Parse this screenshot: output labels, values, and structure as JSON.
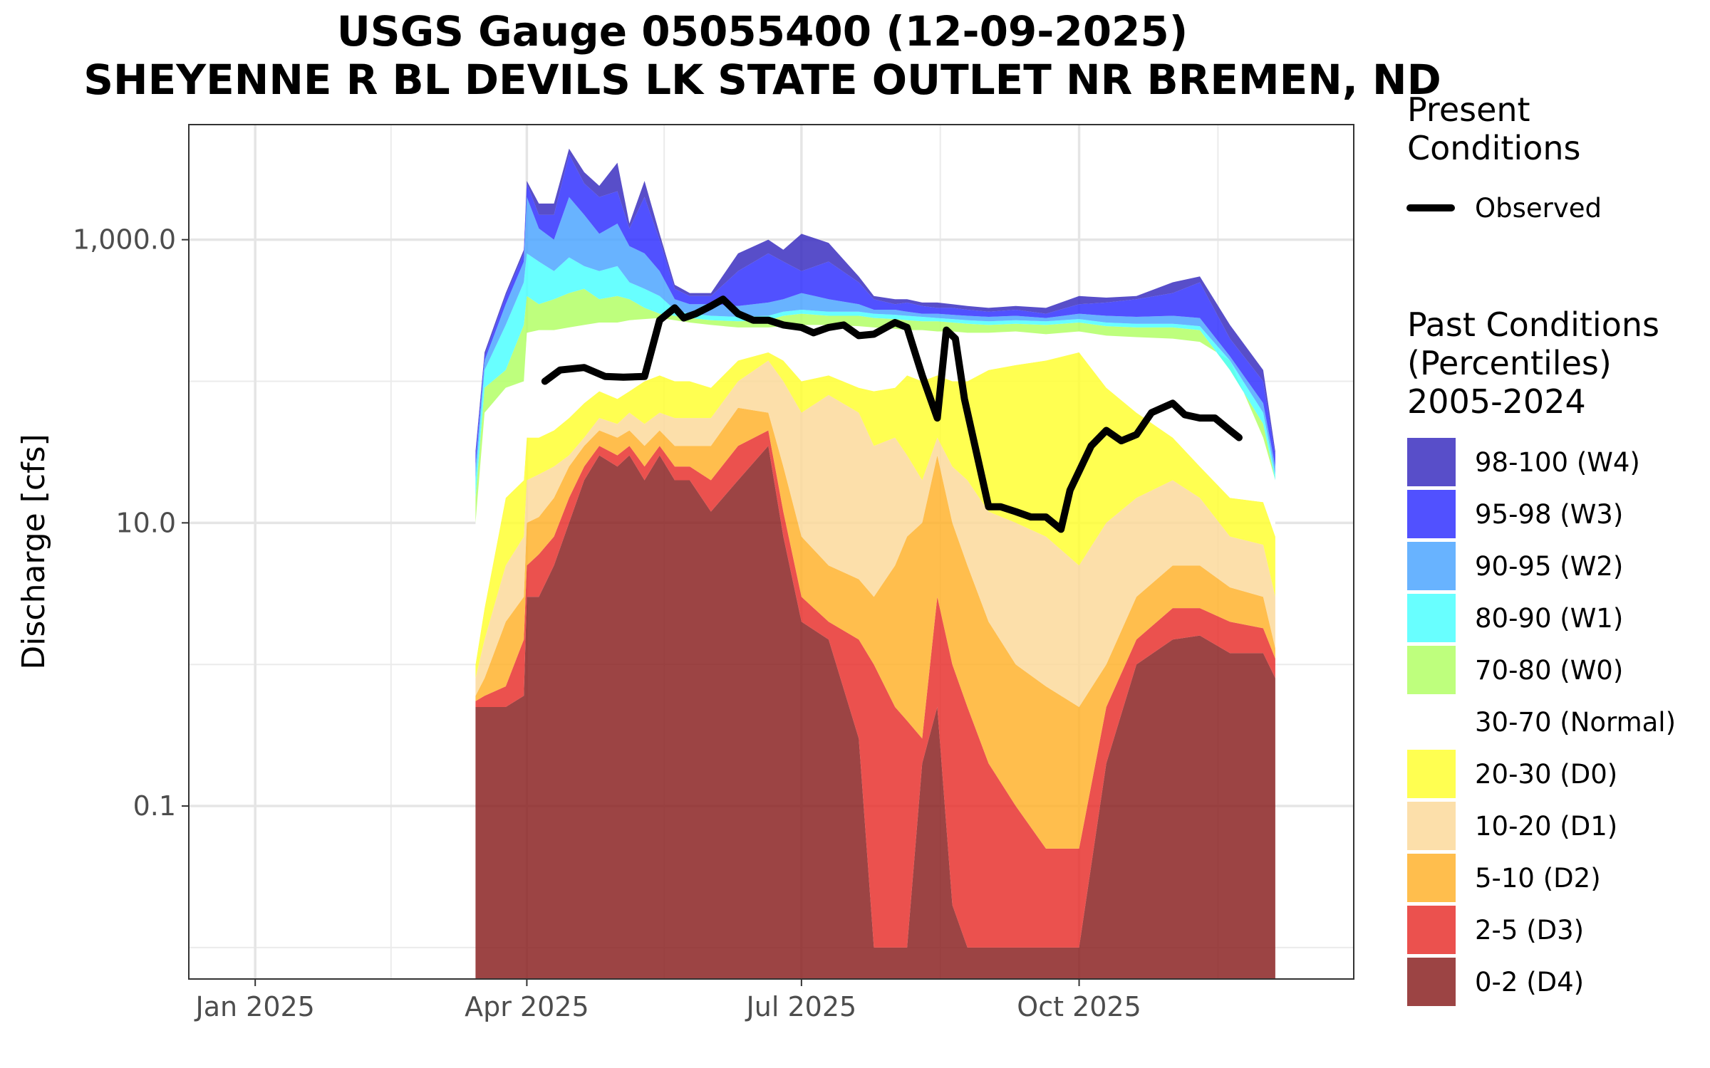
{
  "chart_data": {
    "type": "area",
    "title_line1": "USGS Gauge 05055400 (12-09-2025)",
    "title_line2": "SHEYENNE R BL DEVILS LK STATE OUTLET NR BREMEN, ND",
    "ylabel": "Discharge [cfs]",
    "xlabel": "",
    "y_scale": "log10",
    "ylim": [
      0.006,
      6500
    ],
    "xlim": [
      "2024-12-10",
      "2025-12-31"
    ],
    "grid": true,
    "legend_position": "right",
    "x_ticks": [
      {
        "label": "Jan 2025",
        "date": "2025-01-01"
      },
      {
        "label": "Apr 2025",
        "date": "2025-04-01"
      },
      {
        "label": "Jul 2025",
        "date": "2025-07-01"
      },
      {
        "label": "Oct 2025",
        "date": "2025-10-01"
      }
    ],
    "y_ticks": [
      {
        "label": "0.1",
        "value": 0.1
      },
      {
        "label": "10.0",
        "value": 10
      },
      {
        "label": "1,000.0",
        "value": 1000
      }
    ],
    "legend_present_title": [
      "Present",
      "Conditions"
    ],
    "legend_observed_label": "Observed",
    "legend_past_title": [
      "Past Conditions",
      "(Percentiles)",
      "2005-2024"
    ],
    "band_dates": [
      "2025-03-15",
      "2025-03-18",
      "2025-03-25",
      "2025-03-31",
      "2025-04-01",
      "2025-04-05",
      "2025-04-10",
      "2025-04-15",
      "2025-04-20",
      "2025-04-25",
      "2025-05-01",
      "2025-05-05",
      "2025-05-10",
      "2025-05-15",
      "2025-05-20",
      "2025-05-25",
      "2025-06-01",
      "2025-06-10",
      "2025-06-20",
      "2025-06-25",
      "2025-07-01",
      "2025-07-10",
      "2025-07-20",
      "2025-07-25",
      "2025-08-01",
      "2025-08-05",
      "2025-08-10",
      "2025-08-15",
      "2025-08-20",
      "2025-08-25",
      "2025-09-01",
      "2025-09-10",
      "2025-09-20",
      "2025-10-01",
      "2025-10-10",
      "2025-10-20",
      "2025-11-01",
      "2025-11-10",
      "2025-11-20",
      "2025-12-01",
      "2025-12-05"
    ],
    "bands": [
      {
        "name": "0-2 (D4)",
        "color": "#8b2323",
        "values": [
          0.5,
          0.5,
          0.5,
          0.6,
          3,
          3,
          5,
          10,
          20,
          30,
          25,
          30,
          20,
          30,
          20,
          20,
          12,
          20,
          35,
          8,
          2,
          1.5,
          0.3,
          0.01,
          0.01,
          0.01,
          0.2,
          0.5,
          0.02,
          0.01,
          0.01,
          0.01,
          0.01,
          0.01,
          0.2,
          1,
          1.5,
          1.6,
          1.2,
          1.2,
          0.8
        ]
      },
      {
        "name": "2-5 (D3)",
        "color": "#e8332f",
        "values": [
          0.55,
          0.6,
          0.7,
          1.5,
          5,
          6,
          8,
          15,
          25,
          35,
          30,
          35,
          25,
          35,
          25,
          25,
          20,
          35,
          45,
          12,
          3,
          2,
          1.5,
          1,
          0.5,
          0.4,
          0.3,
          3,
          1,
          0.5,
          0.2,
          0.1,
          0.05,
          0.05,
          0.5,
          1.5,
          2.5,
          2.5,
          2,
          1.8,
          1.1
        ]
      },
      {
        "name": "5-10 (D2)",
        "color": "#ffb32e",
        "values": [
          0.6,
          0.8,
          2,
          3,
          10,
          11,
          15,
          25,
          35,
          45,
          40,
          45,
          35,
          45,
          35,
          35,
          35,
          65,
          60,
          25,
          8,
          5,
          4,
          3,
          5,
          8,
          10,
          30,
          10,
          5,
          2,
          1,
          0.7,
          0.5,
          1,
          3,
          5,
          5,
          3.5,
          3,
          1.3
        ]
      },
      {
        "name": "10-20 (D1)",
        "color": "#fcd99b",
        "values": [
          0.8,
          1.5,
          5,
          8,
          20,
          22,
          25,
          30,
          40,
          55,
          50,
          60,
          50,
          60,
          55,
          55,
          55,
          100,
          140,
          100,
          60,
          80,
          60,
          35,
          40,
          30,
          20,
          40,
          25,
          20,
          12,
          10,
          8,
          5,
          10,
          15,
          20,
          15,
          8,
          7,
          3
        ]
      },
      {
        "name": "20-30 (D0)",
        "color": "#ffff33",
        "values": [
          1,
          2.5,
          15,
          20,
          40,
          40,
          45,
          55,
          70,
          85,
          75,
          85,
          100,
          110,
          100,
          100,
          90,
          140,
          160,
          140,
          100,
          110,
          90,
          85,
          90,
          110,
          100,
          110,
          100,
          100,
          120,
          130,
          140,
          160,
          90,
          60,
          40,
          25,
          15,
          14,
          8
        ]
      },
      {
        "name": "30-70 (Normal)",
        "color": "#ffffff",
        "values": [
          10,
          60,
          90,
          100,
          220,
          230,
          230,
          240,
          250,
          260,
          260,
          270,
          275,
          280,
          270,
          260,
          250,
          240,
          240,
          245,
          250,
          250,
          245,
          240,
          235,
          230,
          230,
          225,
          225,
          220,
          220,
          225,
          215,
          225,
          210,
          205,
          200,
          190,
          140,
          40,
          20
        ]
      },
      {
        "name": "70-80 (W0)",
        "color": "#b3ff66",
        "values": [
          15,
          90,
          120,
          250,
          400,
          350,
          380,
          420,
          450,
          380,
          400,
          380,
          330,
          300,
          290,
          280,
          270,
          265,
          270,
          290,
          300,
          290,
          290,
          280,
          275,
          270,
          265,
          265,
          260,
          255,
          250,
          255,
          250,
          260,
          245,
          240,
          240,
          230,
          120,
          50,
          20
        ]
      },
      {
        "name": "80-90 (W1)",
        "color": "#4dffff",
        "values": [
          20,
          120,
          250,
          500,
          800,
          700,
          600,
          750,
          650,
          600,
          650,
          500,
          450,
          400,
          320,
          300,
          290,
          285,
          290,
          310,
          320,
          310,
          310,
          300,
          295,
          290,
          285,
          280,
          275,
          270,
          265,
          270,
          265,
          275,
          260,
          255,
          255,
          245,
          140,
          60,
          22
        ]
      },
      {
        "name": "90-95 (W2)",
        "color": "#4da6ff",
        "values": [
          25,
          140,
          350,
          700,
          2000,
          1200,
          1000,
          2000,
          1500,
          1100,
          1300,
          900,
          800,
          600,
          380,
          350,
          350,
          340,
          360,
          380,
          420,
          380,
          350,
          320,
          320,
          310,
          300,
          300,
          295,
          290,
          285,
          290,
          280,
          300,
          290,
          285,
          290,
          280,
          150,
          70,
          25
        ]
      },
      {
        "name": "95-98 (W3)",
        "color": "#3333ff",
        "values": [
          30,
          150,
          400,
          800,
          2500,
          1500,
          1500,
          4000,
          2500,
          2000,
          2200,
          1200,
          2000,
          1000,
          450,
          400,
          400,
          600,
          800,
          700,
          600,
          700,
          500,
          380,
          350,
          360,
          340,
          330,
          330,
          320,
          310,
          320,
          300,
          350,
          360,
          380,
          420,
          500,
          200,
          100,
          30
        ]
      },
      {
        "name": "98-100 (W4)",
        "color": "#3b2fc0",
        "values": [
          32,
          160,
          420,
          850,
          2600,
          1800,
          1800,
          4400,
          3000,
          2400,
          3500,
          1300,
          2600,
          1100,
          480,
          420,
          420,
          800,
          1000,
          850,
          1100,
          950,
          550,
          400,
          380,
          380,
          360,
          360,
          350,
          340,
          330,
          340,
          330,
          400,
          390,
          400,
          500,
          550,
          250,
          120,
          32
        ]
      }
    ],
    "observed_dates": [
      "2025-04-07",
      "2025-04-12",
      "2025-04-20",
      "2025-04-27",
      "2025-05-03",
      "2025-05-10",
      "2025-05-15",
      "2025-05-20",
      "2025-05-23",
      "2025-05-27",
      "2025-06-01",
      "2025-06-05",
      "2025-06-10",
      "2025-06-15",
      "2025-06-20",
      "2025-06-25",
      "2025-07-01",
      "2025-07-05",
      "2025-07-10",
      "2025-07-15",
      "2025-07-20",
      "2025-07-25",
      "2025-08-01",
      "2025-08-05",
      "2025-08-10",
      "2025-08-15",
      "2025-08-18",
      "2025-08-21",
      "2025-08-24",
      "2025-09-01",
      "2025-09-05",
      "2025-09-10",
      "2025-09-15",
      "2025-09-20",
      "2025-09-25",
      "2025-09-28",
      "2025-10-05",
      "2025-10-10",
      "2025-10-15",
      "2025-10-20",
      "2025-10-25",
      "2025-11-01",
      "2025-11-05",
      "2025-11-10",
      "2025-11-15",
      "2025-11-20",
      "2025-11-23"
    ],
    "observed_values": [
      100,
      120,
      125,
      108,
      107,
      108,
      270,
      330,
      280,
      300,
      340,
      380,
      300,
      270,
      270,
      250,
      240,
      220,
      240,
      250,
      210,
      215,
      260,
      240,
      110,
      55,
      230,
      200,
      75,
      13,
      13,
      12,
      11,
      11,
      9,
      17,
      35,
      45,
      38,
      42,
      60,
      70,
      58,
      55,
      55,
      45,
      40
    ],
    "observed_color": "#000000"
  }
}
